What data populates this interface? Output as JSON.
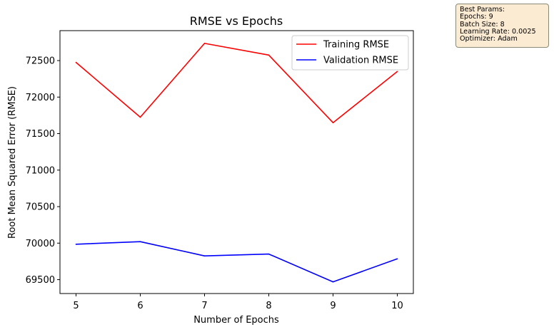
{
  "chart_data": {
    "type": "line",
    "title": "RMSE vs Epochs",
    "xlabel": "Number of Epochs",
    "ylabel": "Root Mean Squared Error (RMSE)",
    "x": [
      5,
      6,
      7,
      8,
      9,
      10
    ],
    "xticks": [
      "5",
      "6",
      "7",
      "8",
      "9",
      "10"
    ],
    "yticks": [
      69500,
      70000,
      70500,
      71000,
      71500,
      72000,
      72500
    ],
    "xlim": [
      4.75,
      10.25
    ],
    "ylim": [
      69310,
      72910
    ],
    "grid": false,
    "legend_position": "top-right",
    "series": [
      {
        "name": "Training RMSE",
        "color": "#ff0000",
        "values": [
          72475,
          71725,
          72735,
          72575,
          71650,
          72350
        ]
      },
      {
        "name": "Validation RMSE",
        "color": "#0000ff",
        "values": [
          69985,
          70020,
          69825,
          69850,
          69470,
          69785
        ]
      }
    ]
  },
  "params_box": {
    "lines": [
      "Best Params:",
      "Epochs: 9",
      "Batch Size: 8",
      "Learning Rate: 0.0025",
      "Optimizer: Adam"
    ]
  }
}
